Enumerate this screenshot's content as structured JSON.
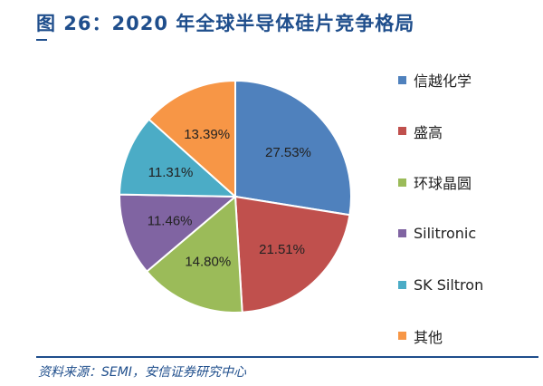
{
  "title": "图 26：2020 年全球半导体硅片竞争格局",
  "source": "资料来源：SEMI，安信证券研究中心",
  "chart_data": {
    "type": "pie",
    "title": "",
    "start": "12 o'clock, clockwise",
    "legend_position": "right",
    "slices": [
      {
        "name": "信越化学",
        "value": 27.53,
        "label": "27.53%",
        "color": "#4F81BD"
      },
      {
        "name": "盛高",
        "value": 21.51,
        "label": "21.51%",
        "color": "#C0504D"
      },
      {
        "name": "环球晶圆",
        "value": 14.8,
        "label": "14.80%",
        "color": "#9BBB59"
      },
      {
        "name": "Silitronic",
        "value": 11.46,
        "label": "11.46%",
        "color": "#8064A2"
      },
      {
        "name": "SK Siltron",
        "value": 11.31,
        "label": "11.31%",
        "color": "#4BACC6"
      },
      {
        "name": "其他",
        "value": 13.39,
        "label": "13.39%",
        "color": "#F79646"
      }
    ]
  }
}
